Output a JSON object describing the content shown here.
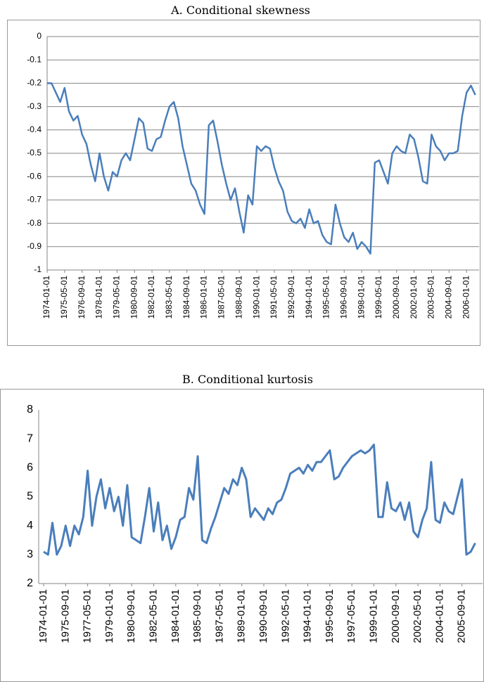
{
  "chart_data": [
    {
      "type": "line",
      "title": "A.  Conditional  skewness",
      "color": "#4a7ebb",
      "grid": true,
      "ylim": [
        -1,
        0
      ],
      "yticks": [
        0,
        -0.1,
        -0.2,
        -0.3,
        -0.4,
        -0.5,
        -0.6,
        -0.7,
        -0.8,
        -0.9,
        -1
      ],
      "categories": [
        "1974-01-01",
        null,
        null,
        null,
        "1975-05-01",
        null,
        null,
        null,
        "1976-09-01",
        null,
        null,
        null,
        "1978-01-01",
        null,
        null,
        null,
        "1979-05-01",
        null,
        null,
        null,
        "1980-09-01",
        null,
        null,
        null,
        "1982-01-01",
        null,
        null,
        null,
        "1983-05-01",
        null,
        null,
        null,
        "1984-09-01",
        null,
        null,
        null,
        "1986-01-01",
        null,
        null,
        null,
        "1987-05-01",
        null,
        null,
        null,
        "1988-09-01",
        null,
        null,
        null,
        "1990-01-01",
        null,
        null,
        null,
        "1991-05-01",
        null,
        null,
        null,
        "1992-09-01",
        null,
        null,
        null,
        "1994-01-01",
        null,
        null,
        null,
        "1995-05-01",
        null,
        null,
        null,
        "1996-09-01",
        null,
        null,
        null,
        "1998-01-01",
        null,
        null,
        null,
        "1999-05-01",
        null,
        null,
        null,
        "2000-09-01",
        null,
        null,
        null,
        "2002-01-01",
        null,
        null,
        null,
        "2003-05-01",
        null,
        null,
        null,
        "2004-09-01",
        null,
        null,
        null,
        "2006-01-01",
        null,
        null
      ],
      "values": [
        -0.2,
        -0.2,
        -0.24,
        -0.28,
        -0.22,
        -0.32,
        -0.36,
        -0.34,
        -0.42,
        -0.46,
        -0.55,
        -0.62,
        -0.5,
        -0.6,
        -0.66,
        -0.58,
        -0.6,
        -0.53,
        -0.5,
        -0.53,
        -0.44,
        -0.35,
        -0.37,
        -0.48,
        -0.49,
        -0.44,
        -0.43,
        -0.36,
        -0.3,
        -0.28,
        -0.35,
        -0.47,
        -0.55,
        -0.63,
        -0.66,
        -0.72,
        -0.76,
        -0.38,
        -0.36,
        -0.45,
        -0.55,
        -0.63,
        -0.7,
        -0.65,
        -0.75,
        -0.84,
        -0.68,
        -0.72,
        -0.47,
        -0.49,
        -0.47,
        -0.48,
        -0.56,
        -0.62,
        -0.66,
        -0.75,
        -0.79,
        -0.8,
        -0.78,
        -0.82,
        -0.74,
        -0.8,
        -0.79,
        -0.85,
        -0.88,
        -0.89,
        -0.72,
        -0.8,
        -0.86,
        -0.88,
        -0.84,
        -0.91,
        -0.88,
        -0.9,
        -0.93,
        -0.54,
        -0.53,
        -0.58,
        -0.63,
        -0.5,
        -0.47,
        -0.49,
        -0.5,
        -0.42,
        -0.44,
        -0.52,
        -0.62,
        -0.63,
        -0.42,
        -0.47,
        -0.49,
        -0.53,
        -0.5,
        -0.5,
        -0.49,
        -0.34,
        -0.24,
        -0.21,
        -0.25
      ]
    },
    {
      "type": "line",
      "title": "B.  Conditional  kurtosis",
      "color": "#4a7ebb",
      "grid": false,
      "ylim": [
        2,
        8
      ],
      "yticks": [
        2,
        3,
        4,
        5,
        6,
        7,
        8
      ],
      "categories": [
        "1974-01-01",
        null,
        null,
        null,
        null,
        "1975-09-01",
        null,
        null,
        null,
        null,
        "1977-05-01",
        null,
        null,
        null,
        null,
        "1979-01-01",
        null,
        null,
        null,
        null,
        "1980-09-01",
        null,
        null,
        null,
        null,
        "1982-05-01",
        null,
        null,
        null,
        null,
        "1984-01-01",
        null,
        null,
        null,
        null,
        "1985-09-01",
        null,
        null,
        null,
        null,
        "1987-05-01",
        null,
        null,
        null,
        null,
        "1989-01-01",
        null,
        null,
        null,
        null,
        "1990-09-01",
        null,
        null,
        null,
        null,
        "1992-05-01",
        null,
        null,
        null,
        null,
        "1994-01-01",
        null,
        null,
        null,
        null,
        "1995-09-01",
        null,
        null,
        null,
        null,
        "1997-05-01",
        null,
        null,
        null,
        null,
        "1999-01-01",
        null,
        null,
        null,
        null,
        "2000-09-01",
        null,
        null,
        null,
        null,
        "2002-05-01",
        null,
        null,
        null,
        null,
        "2004-01-01",
        null,
        null,
        null,
        null,
        "2005-09-01",
        null,
        null,
        null
      ],
      "values": [
        3.1,
        3.0,
        4.1,
        3.0,
        3.3,
        4.0,
        3.3,
        4.0,
        3.7,
        4.3,
        5.9,
        4.0,
        5.0,
        5.6,
        4.6,
        5.3,
        4.5,
        5.0,
        4.0,
        5.4,
        3.6,
        3.5,
        3.4,
        4.3,
        5.3,
        3.8,
        4.8,
        3.5,
        4.0,
        3.2,
        3.6,
        4.2,
        4.3,
        5.3,
        4.9,
        6.4,
        3.5,
        3.4,
        3.9,
        4.3,
        4.8,
        5.3,
        5.1,
        5.6,
        5.4,
        6.0,
        5.6,
        4.3,
        4.6,
        4.4,
        4.2,
        4.6,
        4.4,
        4.8,
        4.9,
        5.3,
        5.8,
        5.9,
        6.0,
        5.8,
        6.1,
        5.9,
        6.2,
        6.2,
        6.4,
        6.6,
        5.6,
        5.7,
        6.0,
        6.2,
        6.4,
        6.5,
        6.6,
        6.5,
        6.6,
        6.8,
        4.3,
        4.3,
        5.5,
        4.6,
        4.5,
        4.8,
        4.2,
        4.8,
        3.8,
        3.6,
        4.2,
        4.6,
        6.2,
        4.2,
        4.1,
        4.8,
        4.5,
        4.4,
        5.0,
        5.6,
        3.0,
        3.1,
        3.4
      ]
    }
  ]
}
